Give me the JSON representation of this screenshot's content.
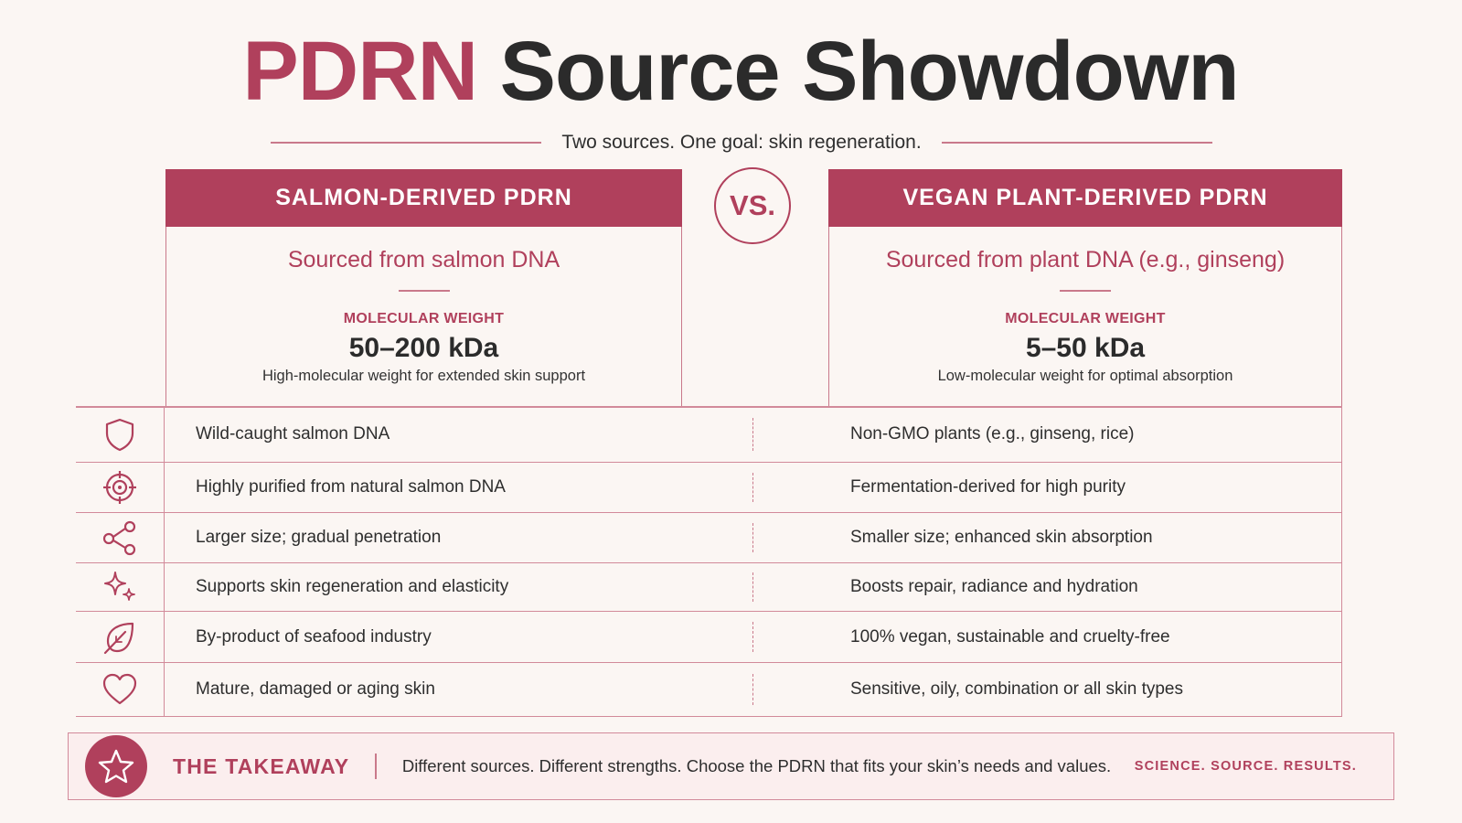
{
  "title": {
    "accent": "PDRN",
    "rest": "Source Showdown"
  },
  "subtitle": "Two sources. One goal: skin regeneration.",
  "vs_label": "VS.",
  "columns": {
    "left": {
      "header": "SALMON-DERIVED PDRN",
      "sourced": "Sourced from salmon DNA",
      "mw_label": "MOLECULAR WEIGHT",
      "mw_value": "50–200 kDa",
      "mw_desc": "High-molecular weight for extended skin support"
    },
    "right": {
      "header": "VEGAN PLANT-DERIVED PDRN",
      "sourced": "Sourced from plant DNA (e.g., ginseng)",
      "mw_label": "MOLECULAR WEIGHT",
      "mw_value": "5–50 kDa",
      "mw_desc": "Low-molecular weight for optimal absorption"
    }
  },
  "rows": [
    {
      "icon": "shield-icon",
      "left": "Wild-caught salmon DNA",
      "right": "Non-GMO plants (e.g., ginseng, rice)"
    },
    {
      "icon": "target-icon",
      "left": "Highly purified from natural salmon DNA",
      "right": "Fermentation-derived for high purity"
    },
    {
      "icon": "molecule-icon",
      "left": "Larger size; gradual penetration",
      "right": "Smaller size; enhanced skin absorption"
    },
    {
      "icon": "sparkle-icon",
      "left": "Supports skin regeneration and elasticity",
      "right": "Boosts repair, radiance and hydration"
    },
    {
      "icon": "leaf-icon",
      "left": "By-product of seafood industry",
      "right": "100% vegan, sustainable and cruelty-free"
    },
    {
      "icon": "heart-icon",
      "left": "Mature, damaged or aging skin",
      "right": "Sensitive, oily, combination or all skin types"
    }
  ],
  "takeaway": {
    "icon": "star-icon",
    "label": "THE TAKEAWAY",
    "message": "Different sources. Different strengths. Choose the PDRN that fits your skin’s needs and values.",
    "tagline": "SCIENCE. SOURCE. RESULTS."
  },
  "colors": {
    "accent": "#b0405c",
    "line": "#d28a9a",
    "background": "#fbf6f3"
  }
}
